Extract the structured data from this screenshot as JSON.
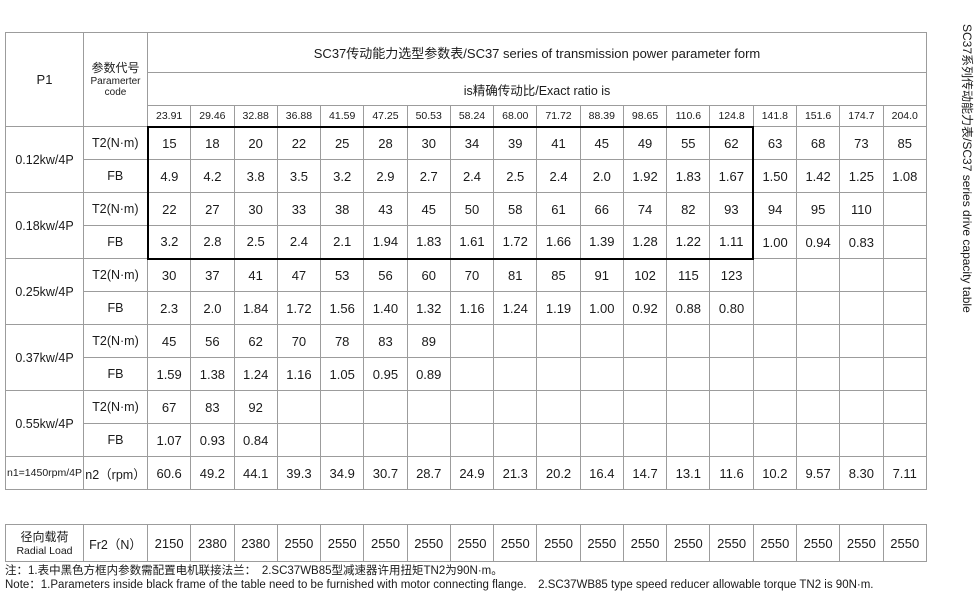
{
  "header": {
    "p1_label": "P1",
    "param_code_zh": "参数代号",
    "param_code_en": "Paramerter code",
    "table_title": "SC37传动能力选型参数表/SC37 series of transmission power parameter form",
    "ratio_title": "is精确传动比/Exact ratio is",
    "ratios": [
      "23.91",
      "29.46",
      "32.88",
      "36.88",
      "41.59",
      "47.25",
      "50.53",
      "58.24",
      "68.00",
      "71.72",
      "88.39",
      "98.65",
      "110.6",
      "124.8",
      "141.8",
      "151.6",
      "174.7",
      "204.0"
    ]
  },
  "row_codes": {
    "t2": "T2(N·m)",
    "fb": "FB"
  },
  "power_groups": [
    {
      "label": "0.12kw/4P",
      "t2": [
        "15",
        "18",
        "20",
        "22",
        "25",
        "28",
        "30",
        "34",
        "39",
        "41",
        "45",
        "49",
        "55",
        "62",
        "63",
        "68",
        "73",
        "85"
      ],
      "fb": [
        "4.9",
        "4.2",
        "3.8",
        "3.5",
        "3.2",
        "2.9",
        "2.7",
        "2.4",
        "2.5",
        "2.4",
        "2.0",
        "1.92",
        "1.83",
        "1.67",
        "1.50",
        "1.42",
        "1.25",
        "1.08"
      ]
    },
    {
      "label": "0.18kw/4P",
      "t2": [
        "22",
        "27",
        "30",
        "33",
        "38",
        "43",
        "45",
        "50",
        "58",
        "61",
        "66",
        "74",
        "82",
        "93",
        "94",
        "95",
        "110",
        ""
      ],
      "fb": [
        "3.2",
        "2.8",
        "2.5",
        "2.4",
        "2.1",
        "1.94",
        "1.83",
        "1.61",
        "1.72",
        "1.66",
        "1.39",
        "1.28",
        "1.22",
        "1.11",
        "1.00",
        "0.94",
        "0.83",
        ""
      ]
    },
    {
      "label": "0.25kw/4P",
      "t2": [
        "30",
        "37",
        "41",
        "47",
        "53",
        "56",
        "60",
        "70",
        "81",
        "85",
        "91",
        "102",
        "115",
        "123",
        "",
        "",
        "",
        ""
      ],
      "fb": [
        "2.3",
        "2.0",
        "1.84",
        "1.72",
        "1.56",
        "1.40",
        "1.32",
        "1.16",
        "1.24",
        "1.19",
        "1.00",
        "0.92",
        "0.88",
        "0.80",
        "",
        "",
        "",
        ""
      ]
    },
    {
      "label": "0.37kw/4P",
      "t2": [
        "45",
        "56",
        "62",
        "70",
        "78",
        "83",
        "89",
        "",
        "",
        "",
        "",
        "",
        "",
        "",
        "",
        "",
        "",
        ""
      ],
      "fb": [
        "1.59",
        "1.38",
        "1.24",
        "1.16",
        "1.05",
        "0.95",
        "0.89",
        "",
        "",
        "",
        "",
        "",
        "",
        "",
        "",
        "",
        "",
        ""
      ]
    },
    {
      "label": "0.55kw/4P",
      "t2": [
        "67",
        "83",
        "92",
        "",
        "",
        "",
        "",
        "",
        "",
        "",
        "",
        "",
        "",
        "",
        "",
        "",
        "",
        ""
      ],
      "fb": [
        "1.07",
        "0.93",
        "0.84",
        "",
        "",
        "",
        "",
        "",
        "",
        "",
        "",
        "",
        "",
        "",
        "",
        "",
        "",
        ""
      ]
    }
  ],
  "speed_row": {
    "label": "n1=1450rpm/4P",
    "code": "n2（rpm）",
    "values": [
      "60.6",
      "49.2",
      "44.1",
      "39.3",
      "34.9",
      "30.7",
      "28.7",
      "24.9",
      "21.3",
      "20.2",
      "16.4",
      "14.7",
      "13.1",
      "11.6",
      "10.2",
      "9.57",
      "8.30",
      "7.11"
    ]
  },
  "radial_row": {
    "label_zh": "径向载荷",
    "label_en": "Radial Load",
    "code": "Fr2（N）",
    "values": [
      "2150",
      "2380",
      "2380",
      "2550",
      "2550",
      "2550",
      "2550",
      "2550",
      "2550",
      "2550",
      "2550",
      "2550",
      "2550",
      "2550",
      "2550",
      "2550",
      "2550",
      "2550"
    ]
  },
  "notes": {
    "zh": "注：1.表中黑色方框内参数需配置电机联接法兰：　2.SC37WB85型减速器许用扭矩TN2为90N·m。",
    "en": "Note：1.Parameters inside black frame of the table need to be furnished with motor connecting flange.　2.SC37WB85 type speed reducer allowable torque TN2 is 90N·m."
  },
  "side_text": "SC37系列传动能力表/SC37 series drive capacity table",
  "frame_color": "#000000",
  "grid_color": "#9c9c9c"
}
